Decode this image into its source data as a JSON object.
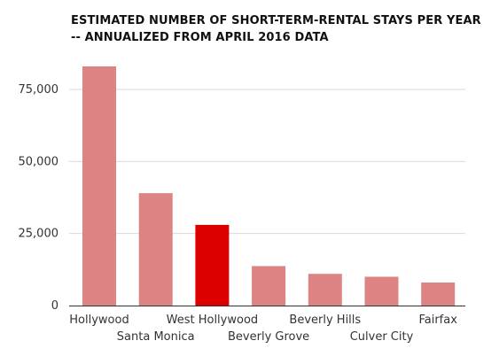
{
  "chart_data": {
    "type": "bar",
    "title_lines": [
      "ESTIMATED NUMBER OF SHORT-TERM-RENTAL STAYS PER YEAR",
      "-- ANNUALIZED FROM APRIL 2016 DATA"
    ],
    "categories": [
      "Hollywood",
      "Santa Monica",
      "West Hollywood",
      "Beverly Grove",
      "Beverly Hills",
      "Culver City",
      "Fairfax"
    ],
    "values": [
      83000,
      39000,
      28000,
      13700,
      11000,
      10000,
      8000
    ],
    "highlight_category": "West Hollywood",
    "yticks": [
      0,
      25000,
      50000,
      75000
    ],
    "ytick_labels": [
      "0",
      "25,000",
      "50,000",
      "75,000"
    ],
    "ylim": [
      0,
      83000
    ],
    "grid": true,
    "colors": {
      "bar": "#de8383",
      "highlight": "#dd0000",
      "grid": "#d9d9d9",
      "axis": "#333333",
      "text": "#333333"
    }
  }
}
